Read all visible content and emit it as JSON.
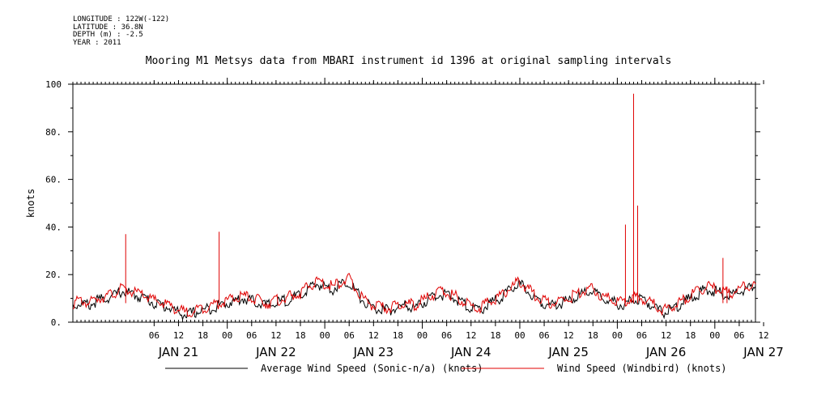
{
  "meta": {
    "longitude": "LONGITUDE : 122W(-122)",
    "latitude": "LATITUDE : 36.8N",
    "depth": "DEPTH (m) : -2.5",
    "year": "YEAR : 2011"
  },
  "chart_data": {
    "type": "line",
    "title": "Mooring M1 Metsys data from MBARI instrument id 1396 at original sampling intervals",
    "ylabel": "knots",
    "xlabel": "",
    "ylim": [
      0,
      100
    ],
    "yticks": [
      "0.",
      "20.",
      "40.",
      "60.",
      "80.",
      "100"
    ],
    "ytick_values": [
      0,
      20,
      40,
      60,
      80,
      100
    ],
    "xlim_hours": [
      -14,
      154
    ],
    "xticks": {
      "hours": [
        6,
        12,
        18,
        24,
        30,
        36,
        42,
        48,
        54,
        60,
        66,
        72,
        78,
        84,
        90,
        96,
        102,
        108,
        114,
        120,
        126,
        132,
        138,
        144,
        150,
        156
      ],
      "labels": [
        "06",
        "12",
        "18",
        "00",
        "06",
        "12",
        "18",
        "00",
        "06",
        "12",
        "18",
        "00",
        "06",
        "12",
        "18",
        "00",
        "06",
        "12",
        "18",
        "00",
        "06",
        "12",
        "18",
        "00",
        "06",
        "12"
      ]
    },
    "day_labels": [
      "JAN 21",
      "JAN 22",
      "JAN 23",
      "JAN 24",
      "JAN 25",
      "JAN 26",
      "JAN 27"
    ],
    "day_label_hours": [
      12,
      36,
      60,
      84,
      108,
      132,
      156
    ],
    "x_hours": [
      -14,
      -12,
      -10,
      -8,
      -6,
      -4,
      -2,
      0,
      2,
      4,
      6,
      8,
      10,
      12,
      14,
      16,
      18,
      20,
      22,
      24,
      26,
      28,
      30,
      32,
      34,
      36,
      38,
      40,
      42,
      44,
      46,
      48,
      50,
      52,
      54,
      56,
      58,
      60,
      62,
      64,
      66,
      68,
      70,
      72,
      74,
      76,
      78,
      80,
      82,
      84,
      86,
      88,
      90,
      92,
      94,
      96,
      98,
      100,
      102,
      104,
      106,
      108,
      110,
      112,
      114,
      116,
      118,
      120,
      122,
      124,
      126,
      128,
      130,
      132,
      134,
      136,
      138,
      140,
      142,
      144,
      146,
      148,
      150,
      152,
      154
    ],
    "series": [
      {
        "name": "Average Wind Speed (Sonic-n/a) (knots)",
        "color": "#000000",
        "values": [
          7,
          8,
          7,
          9,
          10,
          11,
          13,
          12,
          11,
          10,
          8,
          7,
          6,
          4,
          3,
          4,
          5,
          6,
          7,
          8,
          9,
          10,
          9,
          8,
          7,
          8,
          9,
          10,
          11,
          14,
          16,
          15,
          14,
          16,
          17,
          12,
          8,
          6,
          5,
          5,
          6,
          7,
          6,
          8,
          10,
          12,
          11,
          10,
          8,
          6,
          5,
          7,
          9,
          11,
          14,
          16,
          13,
          10,
          8,
          7,
          8,
          9,
          11,
          12,
          13,
          10,
          9,
          8,
          7,
          10,
          9,
          8,
          5,
          4,
          6,
          8,
          10,
          12,
          14,
          13,
          12,
          11,
          13,
          14,
          15
        ]
      },
      {
        "name": "Wind Speed (Windbird) (knots)",
        "color": "#e00000",
        "values": [
          8,
          9,
          8,
          10,
          11,
          12,
          14,
          13,
          12,
          11,
          9,
          8,
          7,
          5,
          4,
          5,
          6,
          7,
          8,
          9,
          10,
          11,
          10,
          9,
          8,
          9,
          10,
          11,
          12,
          15,
          17,
          16,
          15,
          17,
          18,
          13,
          9,
          7,
          6,
          6,
          7,
          8,
          7,
          9,
          11,
          13,
          12,
          11,
          9,
          7,
          6,
          8,
          10,
          12,
          15,
          17,
          14,
          11,
          9,
          8,
          9,
          10,
          12,
          13,
          14,
          11,
          10,
          9,
          8,
          11,
          10,
          9,
          6,
          5,
          7,
          9,
          11,
          13,
          15,
          14,
          13,
          12,
          14,
          15,
          16
        ]
      },
      {
        "name": "",
        "color": "#e00000",
        "spikes": [
          [
            -1,
            37
          ],
          [
            22,
            38
          ],
          [
            122,
            41
          ],
          [
            124,
            96
          ],
          [
            125,
            49
          ],
          [
            146,
            27
          ],
          [
            147,
            15
          ]
        ]
      }
    ],
    "legend": "bottom"
  }
}
